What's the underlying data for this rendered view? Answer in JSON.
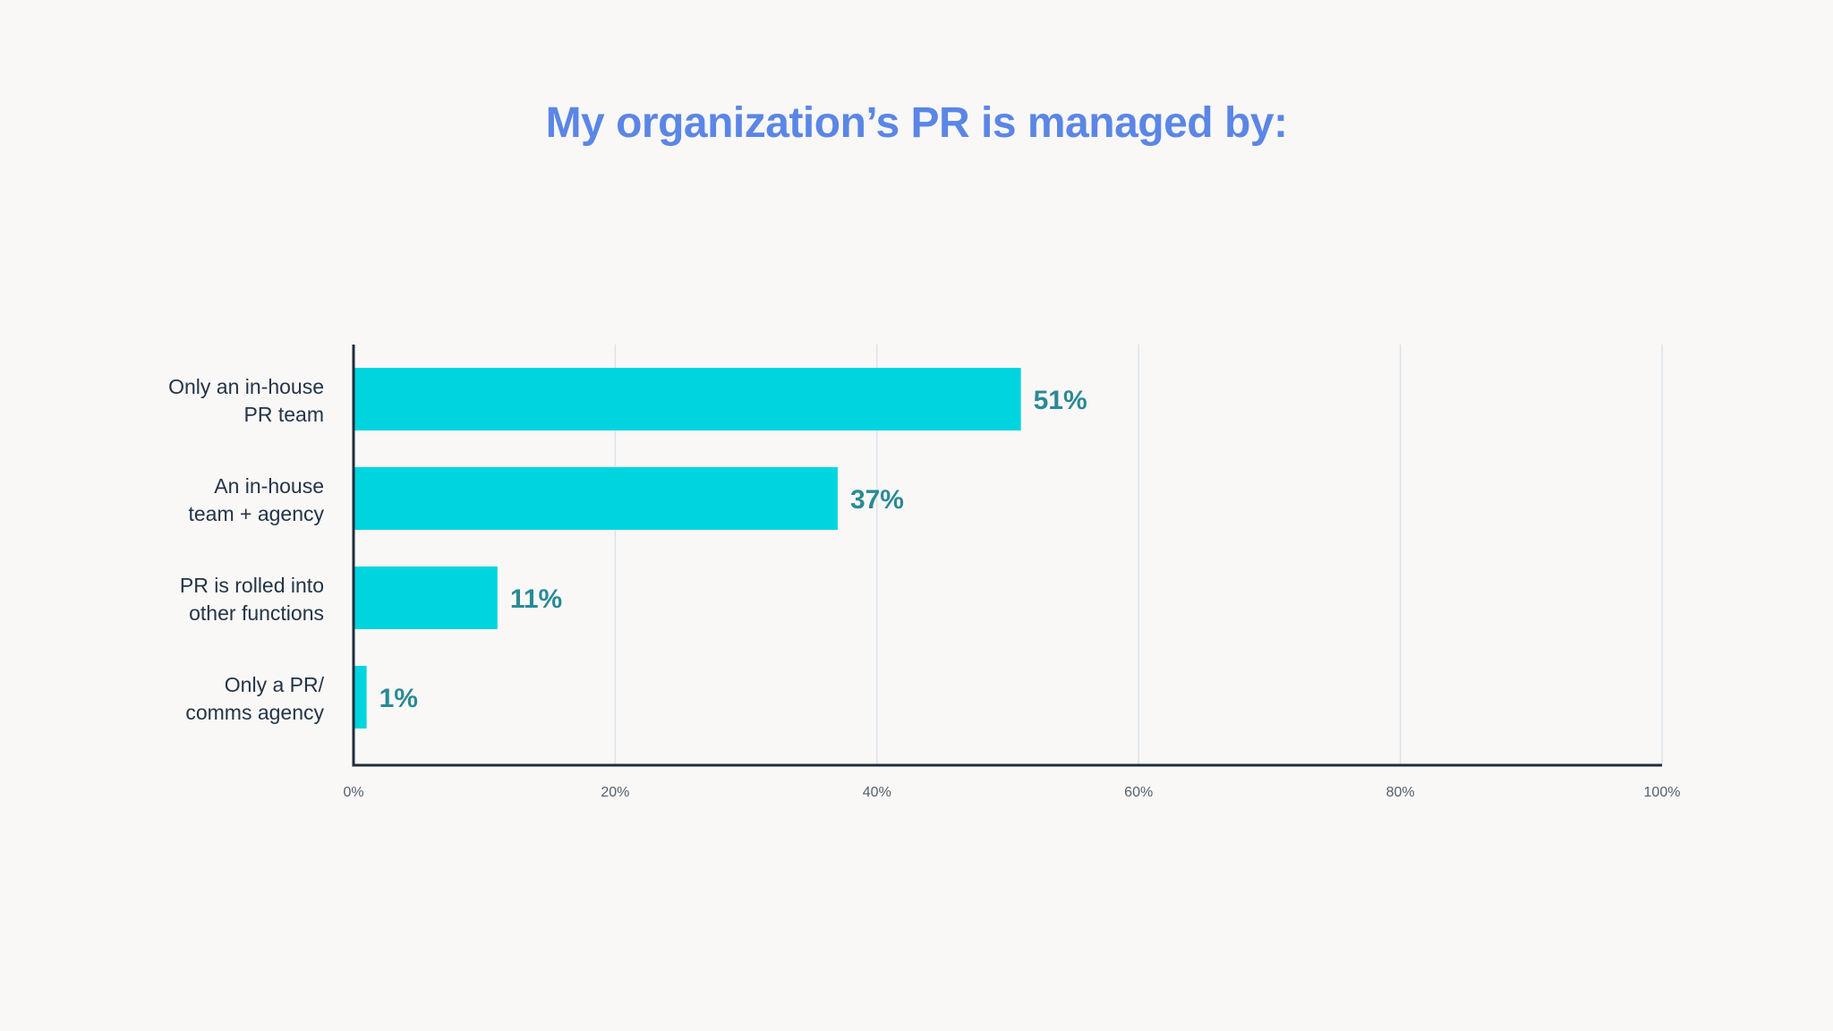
{
  "chart_data": {
    "type": "bar",
    "orientation": "horizontal",
    "title": "My organization’s PR is managed by:",
    "categories": [
      [
        "Only an in-house",
        "PR team"
      ],
      [
        "An in-house",
        "team + agency"
      ],
      [
        "PR is rolled into",
        "other functions"
      ],
      [
        "Only a PR/",
        "comms agency"
      ]
    ],
    "values": [
      51,
      37,
      11,
      1
    ],
    "value_labels": [
      "51%",
      "37%",
      "11%",
      "1%"
    ],
    "xlim": [
      0,
      100
    ],
    "xticks": [
      0,
      20,
      40,
      60,
      80,
      100
    ],
    "xtick_labels": [
      "0%",
      "20%",
      "40%",
      "60%",
      "80%",
      "100%"
    ],
    "grid": true,
    "colors": {
      "bar": "#00d5df",
      "value_text": "#2a8a95",
      "title": "#5b86e5",
      "axis": "#1f2d3d",
      "grid": "#dde3ea"
    }
  }
}
